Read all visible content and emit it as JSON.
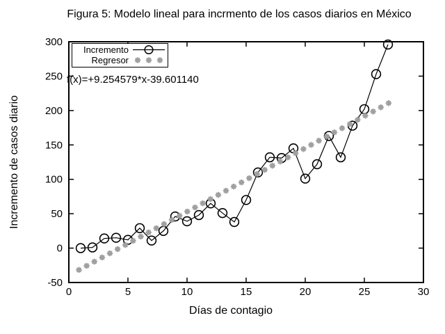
{
  "chart": {
    "title": "Figura 5: Modelo lineal para incrmento de los casos diarios en México",
    "xlabel": "Días de contagio",
    "ylabel": "Incremento de casos diario",
    "equation": "f(x)=+9.254579*x-39.601140",
    "series_labels": {
      "incremento": "Incremento",
      "regresor": "Regresor"
    }
  },
  "chart_data": {
    "type": "line",
    "title": "Figura 5: Modelo lineal para incrmento de los casos diarios en México",
    "xlabel": "Días de contagio",
    "ylabel": "Incremento de casos diario",
    "xlim": [
      0,
      30
    ],
    "ylim": [
      -50,
      300
    ],
    "x_ticks": [
      0,
      5,
      10,
      15,
      20,
      25,
      30
    ],
    "y_ticks": [
      -50,
      0,
      50,
      100,
      150,
      200,
      250,
      300
    ],
    "grid": false,
    "legend_position": "top-left",
    "annotation": "f(x)=+9.254579*x-39.601140",
    "series": [
      {
        "name": "Incremento",
        "type": "line+markers",
        "marker": "open-circle",
        "color": "#000000",
        "x": [
          1,
          2,
          3,
          4,
          5,
          6,
          7,
          8,
          9,
          10,
          11,
          12,
          13,
          14,
          15,
          16,
          17,
          18,
          19,
          20,
          21,
          22,
          23,
          24,
          25,
          26,
          27
        ],
        "y": [
          0,
          1,
          14,
          15,
          12,
          29,
          11,
          25,
          46,
          39,
          48,
          65,
          51,
          38,
          70,
          110,
          132,
          131,
          145,
          101,
          122,
          163,
          132,
          178,
          202,
          253,
          296
        ]
      },
      {
        "name": "Regresor",
        "type": "points",
        "marker": "asterisk",
        "color": "#a0a0a0",
        "fit": {
          "slope": 9.254579,
          "intercept": -39.60114,
          "x_start": 0.85,
          "x_end": 27.05,
          "n_points": 41
        }
      }
    ]
  }
}
